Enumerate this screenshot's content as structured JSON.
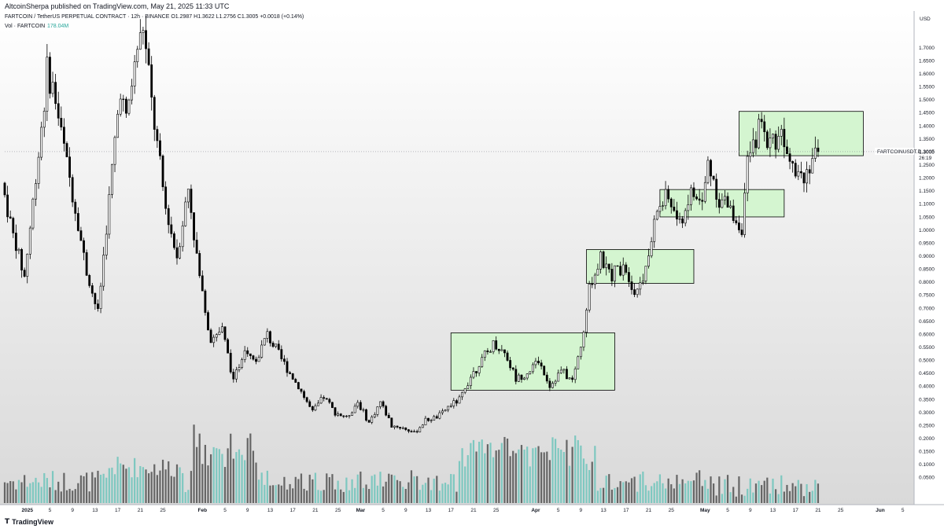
{
  "header": {
    "publisher": "AltcoinSherpa published on TradingView.com, May 21, 2025 11:33 UTC"
  },
  "legend": {
    "line1": "FARTCOIN / TetherUS PERPETUAL CONTRACT · 12h · BINANCE  O1.2987  H1.3622  L1.2756  C1.3005  +0.0018 (+0.14%)",
    "vol_label": "Vol · FARTCOIN",
    "vol_value": "178.04M"
  },
  "price_axis": {
    "currency": "USD",
    "ticks": [
      "1.7000",
      "1.6500",
      "1.6000",
      "1.5500",
      "1.5000",
      "1.4500",
      "1.4000",
      "1.3500",
      "1.3000",
      "1.2500",
      "1.2000",
      "1.1500",
      "1.1000",
      "1.0500",
      "1.0000",
      "0.9500",
      "0.9000",
      "0.8500",
      "0.8000",
      "0.7500",
      "0.7000",
      "0.6500",
      "0.6000",
      "0.5500",
      "0.5000",
      "0.4500",
      "0.4000",
      "0.3500",
      "0.3000",
      "0.2500",
      "0.2000",
      "0.1500",
      "0.1000",
      "0.0500"
    ],
    "current_price": "1.3005",
    "countdown": "26:19",
    "symbol_tag": "FARTCOINUSDT.P"
  },
  "time_axis": {
    "labels": [
      "2025",
      "5",
      "9",
      "13",
      "17",
      "21",
      "25",
      "Feb",
      "5",
      "9",
      "13",
      "17",
      "21",
      "25",
      "Mar",
      "5",
      "9",
      "13",
      "17",
      "21",
      "25",
      "Apr",
      "5",
      "9",
      "13",
      "17",
      "21",
      "25",
      "May",
      "5",
      "9",
      "13",
      "17",
      "21",
      "25",
      "Jun",
      "5"
    ]
  },
  "footer": {
    "logo_text": "TradingView"
  },
  "colors": {
    "candle_up": "#ffffff",
    "candle_down": "#000000",
    "candle_border": "#000000",
    "volume_up": "#7ec8c0",
    "volume_down": "#666666",
    "zone_fill": "#d4f5d0",
    "zone_border": "#000000",
    "vol_value": "#26a69a"
  },
  "chart_data": {
    "type": "candlestick",
    "symbol": "FARTCOINUSDT.P",
    "interval": "12h",
    "x_range": [
      "2024-12-28",
      "2025-06-07"
    ],
    "ylim": [
      0.0,
      1.78
    ],
    "scale": "linear",
    "anchors": [
      [
        "2024-12-28",
        1.18
      ],
      [
        "2024-12-30",
        0.98
      ],
      [
        "2025-01-01",
        0.82
      ],
      [
        "2025-01-03",
        1.2
      ],
      [
        "2025-01-05",
        1.6
      ],
      [
        "2025-01-06",
        1.55
      ],
      [
        "2025-01-08",
        1.32
      ],
      [
        "2025-01-10",
        1.08
      ],
      [
        "2025-01-12",
        0.84
      ],
      [
        "2025-01-14",
        0.68
      ],
      [
        "2025-01-16",
        1.12
      ],
      [
        "2025-01-18",
        1.55
      ],
      [
        "2025-01-19",
        1.42
      ],
      [
        "2025-01-21",
        1.7
      ],
      [
        "2025-01-22",
        1.78
      ],
      [
        "2025-01-24",
        1.4
      ],
      [
        "2025-01-26",
        1.08
      ],
      [
        "2025-01-28",
        0.9
      ],
      [
        "2025-01-30",
        1.16
      ],
      [
        "2025-02-01",
        0.82
      ],
      [
        "2025-02-03",
        0.58
      ],
      [
        "2025-02-05",
        0.62
      ],
      [
        "2025-02-07",
        0.42
      ],
      [
        "2025-02-09",
        0.55
      ],
      [
        "2025-02-11",
        0.5
      ],
      [
        "2025-02-13",
        0.6
      ],
      [
        "2025-02-15",
        0.52
      ],
      [
        "2025-02-17",
        0.45
      ],
      [
        "2025-02-19",
        0.38
      ],
      [
        "2025-02-21",
        0.3
      ],
      [
        "2025-02-23",
        0.36
      ],
      [
        "2025-02-25",
        0.3
      ],
      [
        "2025-02-27",
        0.28
      ],
      [
        "2025-03-01",
        0.34
      ],
      [
        "2025-03-03",
        0.26
      ],
      [
        "2025-03-05",
        0.34
      ],
      [
        "2025-03-07",
        0.25
      ],
      [
        "2025-03-09",
        0.24
      ],
      [
        "2025-03-11",
        0.22
      ],
      [
        "2025-03-13",
        0.27
      ],
      [
        "2025-03-15",
        0.28
      ],
      [
        "2025-03-17",
        0.32
      ],
      [
        "2025-03-19",
        0.35
      ],
      [
        "2025-03-21",
        0.44
      ],
      [
        "2025-03-23",
        0.5
      ],
      [
        "2025-03-25",
        0.56
      ],
      [
        "2025-03-27",
        0.53
      ],
      [
        "2025-03-29",
        0.43
      ],
      [
        "2025-03-31",
        0.45
      ],
      [
        "2025-04-02",
        0.5
      ],
      [
        "2025-04-04",
        0.4
      ],
      [
        "2025-04-06",
        0.46
      ],
      [
        "2025-04-08",
        0.42
      ],
      [
        "2025-04-10",
        0.6
      ],
      [
        "2025-04-11",
        0.78
      ],
      [
        "2025-04-13",
        0.88
      ],
      [
        "2025-04-15",
        0.82
      ],
      [
        "2025-04-17",
        0.88
      ],
      [
        "2025-04-19",
        0.76
      ],
      [
        "2025-04-21",
        0.84
      ],
      [
        "2025-04-23",
        1.08
      ],
      [
        "2025-04-25",
        1.12
      ],
      [
        "2025-04-27",
        1.02
      ],
      [
        "2025-04-29",
        1.14
      ],
      [
        "2025-05-01",
        1.1
      ],
      [
        "2025-05-02",
        1.26
      ],
      [
        "2025-05-04",
        1.12
      ],
      [
        "2025-05-06",
        1.08
      ],
      [
        "2025-05-08",
        1.0
      ],
      [
        "2025-05-09",
        1.26
      ],
      [
        "2025-05-11",
        1.38
      ],
      [
        "2025-05-13",
        1.34
      ],
      [
        "2025-05-15",
        1.38
      ],
      [
        "2025-05-17",
        1.28
      ],
      [
        "2025-05-19",
        1.2
      ],
      [
        "2025-05-20",
        1.26
      ],
      [
        "2025-05-21",
        1.3005
      ]
    ],
    "boxes": [
      {
        "from": "2025-03-17",
        "to": "2025-04-15",
        "low": 0.385,
        "high": 0.605
      },
      {
        "from": "2025-04-10",
        "to": "2025-04-29",
        "low": 0.795,
        "high": 0.925
      },
      {
        "from": "2025-04-23",
        "to": "2025-05-15",
        "low": 1.05,
        "high": 1.155
      },
      {
        "from": "2025-05-07",
        "to": "2025-05-29",
        "low": 1.285,
        "high": 1.455
      }
    ]
  }
}
